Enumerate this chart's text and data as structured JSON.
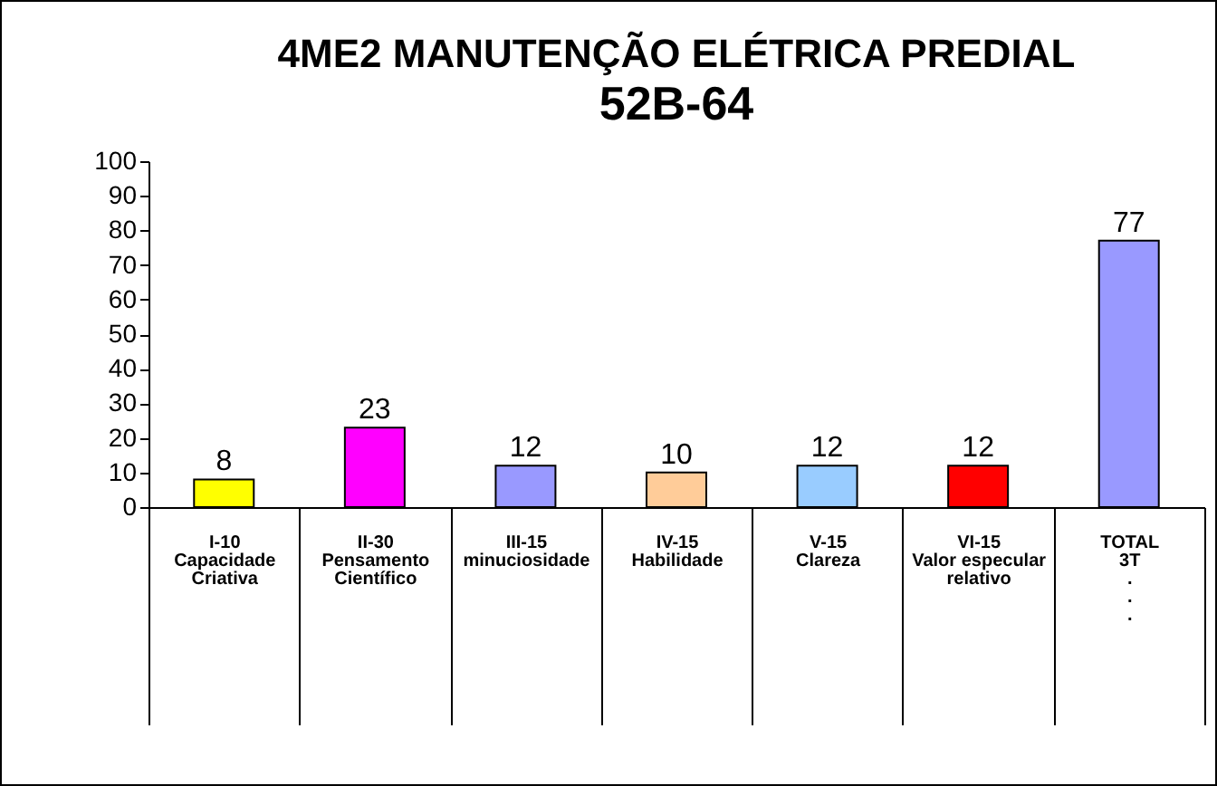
{
  "chart_data": {
    "type": "bar",
    "title": "4ME2 MANUTENÇÃO ELÉTRICA PREDIAL",
    "subtitle": "52B-64",
    "categories": [
      "I-10\n\n\n\n\n\n\n\nCapacidade\nCriativa",
      "II-30\n\n\n\n\n\n\n\nPensamento\nCientífico",
      "III-15\n\n\n\n\n\n\n\nminuciosidade",
      "IV-15\n\n\n\n\n\n\n\nHabilidade",
      "V-15\n\n\n\n\n\n\n\nClareza",
      "VI-15\n\n\n\n\n\n\n\nValor especular\nrelativo",
      "TOTAL\n\n3T\n\n.\n\n.\n\n."
    ],
    "values": [
      8,
      23,
      12,
      10,
      12,
      12,
      77
    ],
    "colors": [
      "#ffff00",
      "#ff00ff",
      "#9999ff",
      "#ffcc99",
      "#99ccff",
      "#ff0000",
      "#9999ff"
    ],
    "ylim": [
      0,
      100
    ],
    "yticks": [
      0,
      10,
      20,
      30,
      40,
      50,
      60,
      70,
      80,
      90,
      100
    ],
    "data_labels": true,
    "grid": false
  }
}
